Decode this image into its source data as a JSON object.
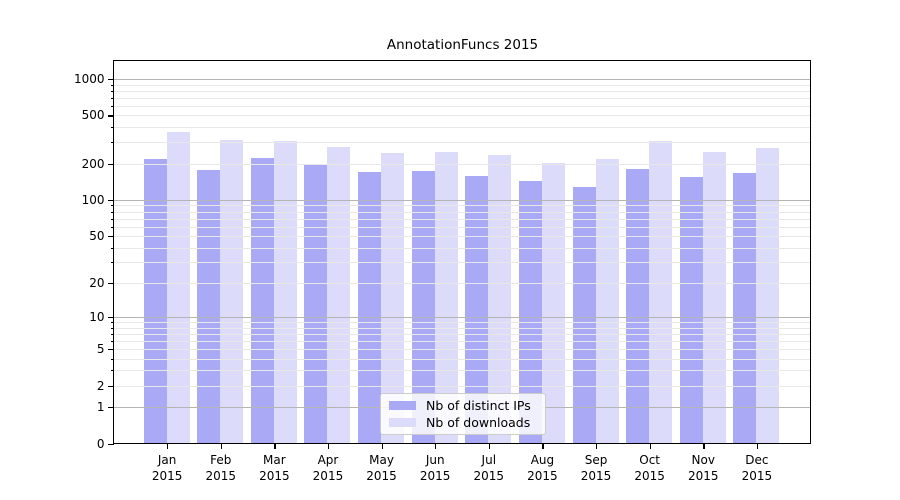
{
  "figure": {
    "background": "#ffffff"
  },
  "chart_data": {
    "type": "bar",
    "title": "AnnotationFuncs 2015",
    "x_categories": [
      "Jan",
      "Feb",
      "Mar",
      "Apr",
      "May",
      "Jun",
      "Jul",
      "Aug",
      "Sep",
      "Oct",
      "Nov",
      "Dec"
    ],
    "x_year": "2015",
    "series": [
      {
        "name": "Nb of distinct IPs",
        "color": "#a9a9f5",
        "values": [
          218,
          177,
          222,
          199,
          172,
          174,
          159,
          144,
          127,
          181,
          156,
          166
        ]
      },
      {
        "name": "Nb of downloads",
        "color": "#dcdcfa",
        "values": [
          365,
          314,
          310,
          277,
          246,
          251,
          234,
          201,
          219,
          310,
          248,
          268
        ]
      }
    ],
    "y_ticks": [
      0,
      1,
      2,
      5,
      10,
      20,
      50,
      100,
      200,
      500,
      1000
    ],
    "y_scale": "log1p",
    "y_axis_top_value": 1430,
    "ylim": [
      0,
      1430
    ],
    "xlabel": "",
    "ylabel": "",
    "grid": "on",
    "legend_position": "lower center",
    "colors": {
      "major_grid": "#b5b5b5",
      "minor_grid": "#e8e8e8",
      "axis": "#000000",
      "text": "#000000"
    }
  }
}
